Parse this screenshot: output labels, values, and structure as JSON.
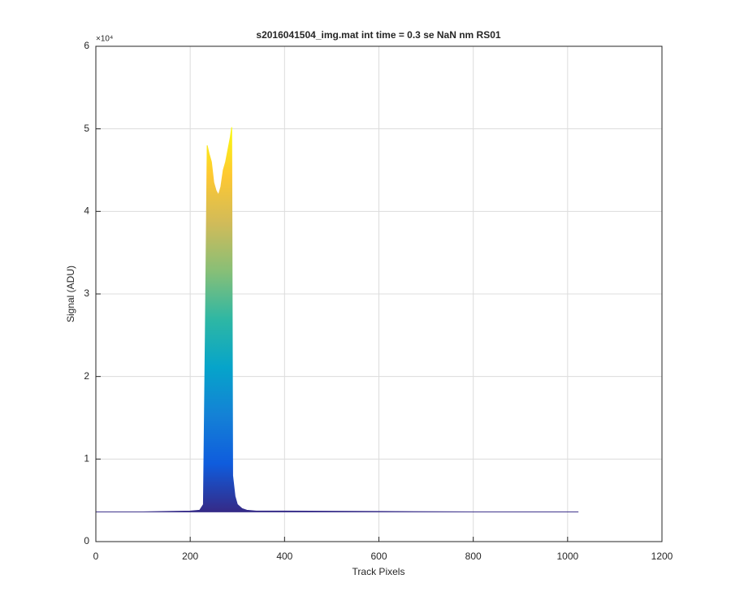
{
  "chart_data": {
    "type": "area",
    "title": "s2016041504_img.mat int time = 0.3 se  NaN nm RS01",
    "x_label": "Track Pixels",
    "y_label": "Signal (ADU)",
    "y_multiplier": "×10⁴",
    "x": [
      0,
      100,
      200,
      220,
      228,
      232,
      236,
      240,
      245,
      250,
      255,
      260,
      265,
      270,
      275,
      280,
      285,
      288,
      290,
      295,
      300,
      310,
      320,
      340,
      400,
      600,
      800,
      1023
    ],
    "values": [
      0.36,
      0.36,
      0.37,
      0.38,
      0.45,
      2.5,
      4.8,
      4.7,
      4.6,
      4.35,
      4.25,
      4.2,
      4.3,
      4.5,
      4.6,
      4.75,
      4.9,
      5.02,
      0.8,
      0.55,
      0.45,
      0.4,
      0.38,
      0.37,
      0.37,
      0.365,
      0.36,
      0.36
    ],
    "colormap": [
      "#352a87",
      "#0f5cdd",
      "#1481d6",
      "#06a4ca",
      "#2eb7a4",
      "#87bf77",
      "#d1bb59",
      "#fec832",
      "#f9fb0e"
    ],
    "xlim": [
      0,
      1200
    ],
    "xticks": [
      0,
      200,
      400,
      600,
      800,
      1000,
      1200
    ],
    "ylim": [
      0,
      6
    ],
    "yticks": [
      0,
      1,
      2,
      3,
      4,
      5,
      6
    ],
    "grid": true
  }
}
